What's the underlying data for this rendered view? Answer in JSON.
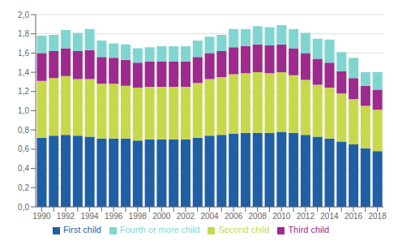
{
  "chart_data": {
    "type": "bar",
    "stacked": true,
    "grid": true,
    "legend": "bottom",
    "categories": [
      "1990",
      null,
      "1992",
      null,
      "1994",
      null,
      "1996",
      null,
      "1998",
      null,
      "2000",
      null,
      "2002",
      null,
      "2004",
      null,
      "2006",
      null,
      "2008",
      null,
      "2010",
      null,
      "2012",
      null,
      "2014",
      null,
      "2016",
      null,
      "2018"
    ],
    "series": [
      {
        "name": "First child",
        "color": "#1f5fa6",
        "values": [
          0.72,
          0.74,
          0.75,
          0.74,
          0.73,
          0.71,
          0.71,
          0.71,
          0.69,
          0.7,
          0.7,
          0.7,
          0.7,
          0.72,
          0.74,
          0.75,
          0.76,
          0.77,
          0.77,
          0.77,
          0.78,
          0.77,
          0.75,
          0.73,
          0.71,
          0.68,
          0.65,
          0.61,
          0.58
        ]
      },
      {
        "name": "Second child",
        "color": "#c8d84b",
        "values": [
          0.59,
          0.6,
          0.61,
          0.59,
          0.6,
          0.57,
          0.57,
          0.55,
          0.55,
          0.55,
          0.55,
          0.55,
          0.55,
          0.57,
          0.59,
          0.6,
          0.62,
          0.62,
          0.63,
          0.62,
          0.62,
          0.6,
          0.57,
          0.54,
          0.53,
          0.5,
          0.47,
          0.44,
          0.43
        ]
      },
      {
        "name": "Third child",
        "color": "#9e2a8e",
        "values": [
          0.29,
          0.28,
          0.29,
          0.29,
          0.3,
          0.28,
          0.27,
          0.27,
          0.26,
          0.26,
          0.26,
          0.26,
          0.26,
          0.27,
          0.27,
          0.27,
          0.28,
          0.28,
          0.29,
          0.29,
          0.29,
          0.28,
          0.28,
          0.27,
          0.26,
          0.23,
          0.22,
          0.21,
          0.21
        ]
      },
      {
        "name": "Fourth or more child",
        "color": "#7fd6d0",
        "values": [
          0.18,
          0.17,
          0.19,
          0.19,
          0.22,
          0.17,
          0.15,
          0.16,
          0.15,
          0.15,
          0.16,
          0.16,
          0.16,
          0.17,
          0.17,
          0.17,
          0.19,
          0.18,
          0.19,
          0.19,
          0.2,
          0.2,
          0.21,
          0.21,
          0.24,
          0.2,
          0.21,
          0.14,
          0.18
        ]
      }
    ],
    "ylim": [
      0,
      2.0
    ],
    "yticks": [
      {
        "value": 0.0,
        "label": "0,0"
      },
      {
        "value": 0.2,
        "label": "0,2"
      },
      {
        "value": 0.4,
        "label": "0,4"
      },
      {
        "value": 0.6,
        "label": "0,6"
      },
      {
        "value": 0.8,
        "label": "0,8"
      },
      {
        "value": 1.0,
        "label": "1,0"
      },
      {
        "value": 1.2,
        "label": "1,2"
      },
      {
        "value": 1.4,
        "label": "1,4"
      },
      {
        "value": 1.6,
        "label": "1,6"
      },
      {
        "value": 1.8,
        "label": "1,8"
      },
      {
        "value": 2.0,
        "label": "2,0"
      }
    ]
  }
}
